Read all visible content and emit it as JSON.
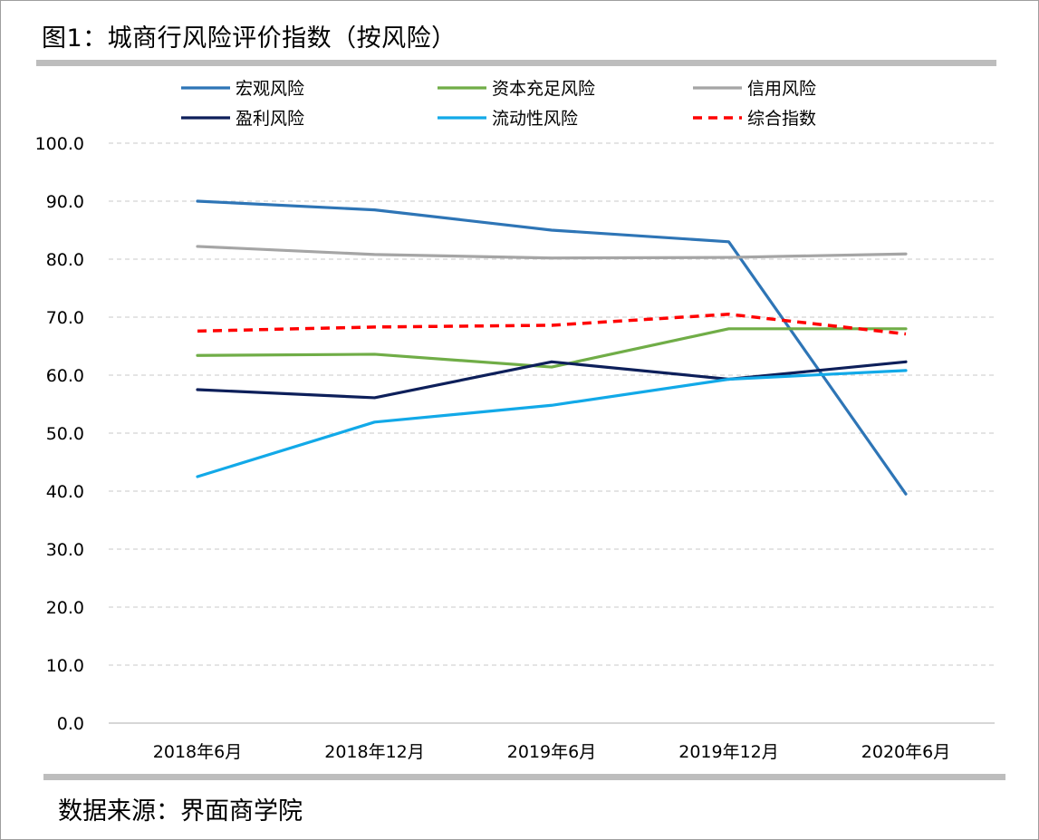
{
  "title": "图1：城商行风险评价指数（按风险）",
  "source": "数据来源：界面商学院",
  "chart_data": {
    "type": "line",
    "categories": [
      "2018年6月",
      "2018年12月",
      "2019年6月",
      "2019年12月",
      "2020年6月"
    ],
    "ylim": [
      0,
      100
    ],
    "yticks": [
      "100.0",
      "90.0",
      "80.0",
      "70.0",
      "60.0",
      "50.0",
      "40.0",
      "30.0",
      "20.0",
      "10.0",
      "0.0"
    ],
    "grid": true,
    "legend_position": "top",
    "series": [
      {
        "name": "宏观风险",
        "color": "#2e75b6",
        "dashed": false,
        "values": [
          90.0,
          88.5,
          85.0,
          83.0,
          39.5
        ]
      },
      {
        "name": "资本充足风险",
        "color": "#70ad47",
        "dashed": false,
        "values": [
          63.4,
          63.6,
          61.4,
          68.0,
          68.0
        ]
      },
      {
        "name": "信用风险",
        "color": "#a5a5a5",
        "dashed": false,
        "values": [
          82.2,
          80.8,
          80.2,
          80.3,
          80.9
        ]
      },
      {
        "name": "盈利风险",
        "color": "#0d1f5a",
        "dashed": false,
        "values": [
          57.5,
          56.1,
          62.3,
          59.3,
          62.3
        ]
      },
      {
        "name": "流动性风险",
        "color": "#12a9e8",
        "dashed": false,
        "values": [
          42.5,
          51.9,
          54.8,
          59.3,
          60.8
        ]
      },
      {
        "name": "综合指数",
        "color": "#ff0000",
        "dashed": true,
        "values": [
          67.6,
          68.3,
          68.6,
          70.5,
          67.1
        ]
      }
    ]
  }
}
